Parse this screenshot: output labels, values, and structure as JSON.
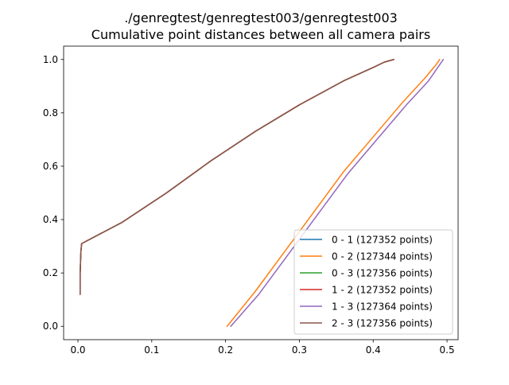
{
  "chart_data": {
    "type": "line",
    "title": "./genregtest/genregtest003/genregtest003",
    "subtitle": "Cumulative point distances between all camera pairs",
    "xlabel": "",
    "ylabel": "",
    "xlim": [
      -0.0194,
      0.515
    ],
    "ylim": [
      -0.05,
      1.05
    ],
    "xticks": [
      0.0,
      0.1,
      0.2,
      0.3,
      0.4,
      0.5
    ],
    "xtick_labels": [
      "0.0",
      "0.1",
      "0.2",
      "0.3",
      "0.4",
      "0.5"
    ],
    "yticks": [
      0.0,
      0.2,
      0.4,
      0.6,
      0.8,
      1.0
    ],
    "ytick_labels": [
      "0.0",
      "0.2",
      "0.4",
      "0.6",
      "0.8",
      "1.0"
    ],
    "grid": false,
    "legend_position": "lower right",
    "series": [
      {
        "name": "0 - 1 (127352 points)",
        "color": "#1f77b4",
        "x": [
          0.003,
          0.003,
          0.004,
          0.005,
          0.06,
          0.12,
          0.18,
          0.24,
          0.3,
          0.36,
          0.4,
          0.415,
          0.428
        ],
        "y": [
          0.12,
          0.2,
          0.28,
          0.31,
          0.39,
          0.5,
          0.62,
          0.73,
          0.83,
          0.92,
          0.97,
          0.99,
          1.0
        ]
      },
      {
        "name": "0 - 2 (127344 points)",
        "color": "#ff7f0e",
        "x": [
          0.202,
          0.24,
          0.28,
          0.32,
          0.36,
          0.4,
          0.44,
          0.47,
          0.485,
          0.49
        ],
        "y": [
          0.0,
          0.13,
          0.28,
          0.43,
          0.58,
          0.71,
          0.84,
          0.93,
          0.98,
          1.0
        ]
      },
      {
        "name": "0 - 3 (127356 points)",
        "color": "#2ca02c",
        "x": [
          0.003,
          0.003,
          0.004,
          0.005,
          0.06,
          0.12,
          0.18,
          0.24,
          0.3,
          0.36,
          0.4,
          0.415,
          0.428
        ],
        "y": [
          0.12,
          0.2,
          0.28,
          0.31,
          0.39,
          0.5,
          0.62,
          0.73,
          0.83,
          0.92,
          0.97,
          0.99,
          1.0
        ]
      },
      {
        "name": "1 - 2 (127352 points)",
        "color": "#d62728",
        "x": [
          0.003,
          0.003,
          0.004,
          0.005,
          0.06,
          0.12,
          0.18,
          0.24,
          0.3,
          0.36,
          0.4,
          0.415,
          0.428
        ],
        "y": [
          0.12,
          0.2,
          0.28,
          0.31,
          0.39,
          0.5,
          0.62,
          0.73,
          0.83,
          0.92,
          0.97,
          0.99,
          1.0
        ]
      },
      {
        "name": "1 - 3 (127364 points)",
        "color": "#9467bd",
        "x": [
          0.207,
          0.245,
          0.285,
          0.325,
          0.365,
          0.405,
          0.445,
          0.475,
          0.49,
          0.495
        ],
        "y": [
          0.0,
          0.12,
          0.27,
          0.42,
          0.57,
          0.7,
          0.83,
          0.92,
          0.98,
          1.0
        ]
      },
      {
        "name": "2 - 3 (127356 points)",
        "color": "#8c564b",
        "x": [
          0.003,
          0.003,
          0.004,
          0.005,
          0.06,
          0.12,
          0.18,
          0.24,
          0.3,
          0.36,
          0.4,
          0.415,
          0.428
        ],
        "y": [
          0.12,
          0.2,
          0.28,
          0.31,
          0.39,
          0.5,
          0.62,
          0.73,
          0.83,
          0.92,
          0.97,
          0.99,
          1.0
        ]
      }
    ]
  }
}
